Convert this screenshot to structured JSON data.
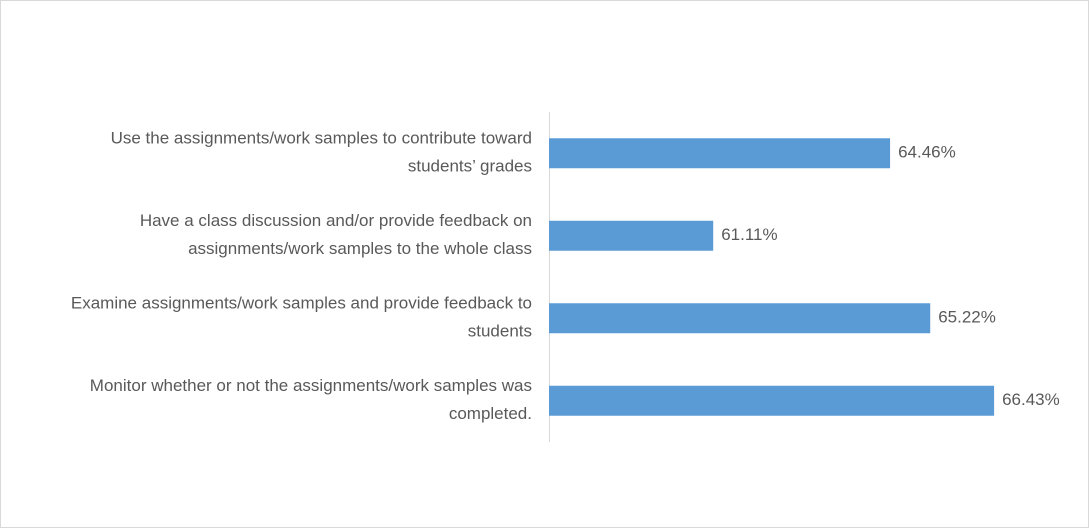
{
  "chart_data": {
    "type": "bar",
    "orientation": "horizontal",
    "categories": [
      "Use the assignments/work samples to contribute toward\nstudents’ grades",
      "Have a class discussion and/or provide feedback on\nassignments/work samples to the whole class",
      "Examine assignments/work samples and provide feedback to\nstudents",
      "Monitor whether or not the assignments/work samples was\ncompleted."
    ],
    "values": [
      64.46,
      61.11,
      65.22,
      66.43
    ],
    "value_labels": [
      "64.46%",
      "61.11%",
      "65.22%",
      "66.43%"
    ],
    "color": "#5b9bd5",
    "xlim": [
      58,
      68
    ]
  }
}
